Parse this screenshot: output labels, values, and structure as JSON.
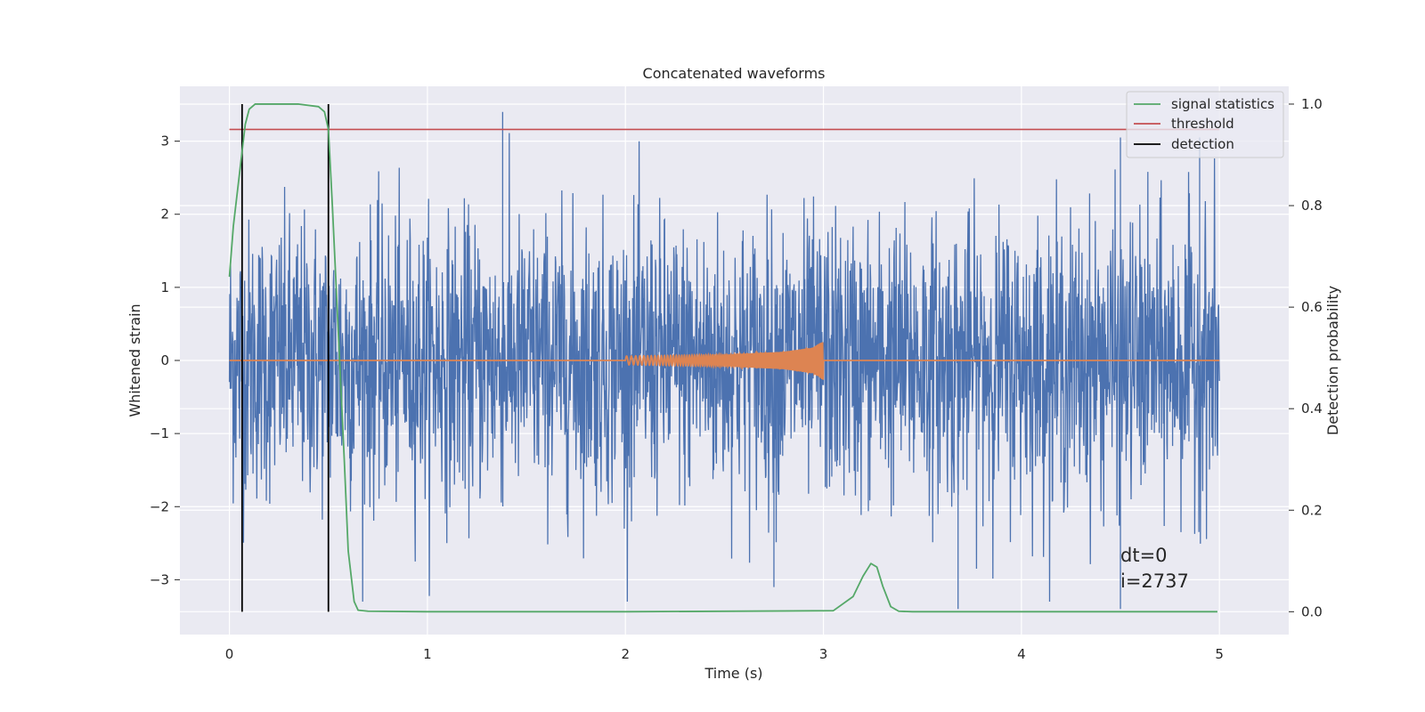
{
  "chart_data": {
    "type": "line",
    "title": "Concatenated waveforms",
    "xlabel": "Time (s)",
    "ylabel": "Whitened strain",
    "ylabel_right": "Detection probability",
    "xlim": [
      -0.25,
      5.35
    ],
    "ylim": [
      -3.75,
      3.75
    ],
    "ylim_right": [
      -0.045,
      1.035
    ],
    "x_ticks": [
      0,
      1,
      2,
      3,
      4,
      5
    ],
    "y_ticks": [
      -3,
      -2,
      -1,
      0,
      1,
      2,
      3
    ],
    "y_ticks_right": [
      "0.0",
      "0.2",
      "0.4",
      "0.6",
      "0.8",
      "1.0"
    ],
    "y_ticks_right_values": [
      0.0,
      0.2,
      0.4,
      0.6,
      0.8,
      1.0
    ],
    "x_tick_labels": [
      "0",
      "1",
      "2",
      "3",
      "4",
      "5"
    ],
    "y_tick_labels": [
      "−3",
      "−2",
      "−1",
      "0",
      "1",
      "2",
      "3"
    ],
    "grid": true,
    "legend_position": "upper right",
    "colors": {
      "strain": "#4c72b0",
      "waveform": "#dd8452",
      "statistics": "#55a868",
      "threshold": "#c44e52",
      "detection": "#000000",
      "background": "#eaeaf2",
      "grid": "#ffffff"
    },
    "series": [
      {
        "name": "whitened strain",
        "axis": "left",
        "style": "noise",
        "x_range": [
          0,
          5
        ],
        "amplitude_typical": 2.4,
        "peak_max": 3.4,
        "peak_min": -3.45,
        "noted_spikes": [
          {
            "x": 1.38,
            "y": 3.4
          },
          {
            "x": 2.75,
            "y": -3.1
          },
          {
            "x": 3.68,
            "y": -3.4
          },
          {
            "x": 4.5,
            "y": 3.05
          },
          {
            "x": 4.5,
            "y": -3.4
          },
          {
            "x": 4.9,
            "y": 3.05
          }
        ]
      },
      {
        "name": "injected waveform",
        "axis": "left",
        "x": [
          0,
          2,
          2,
          2.5,
          2.8,
          2.95,
          3.0,
          3.0,
          5
        ],
        "amplitude": [
          0,
          0,
          0.06,
          0.08,
          0.12,
          0.18,
          0.27,
          0,
          0
        ]
      },
      {
        "name": "signal statistics",
        "axis": "right",
        "x": [
          0,
          0.02,
          0.05,
          0.08,
          0.1,
          0.13,
          0.2,
          0.35,
          0.45,
          0.48,
          0.5,
          0.52,
          0.55,
          0.58,
          0.6,
          0.63,
          0.65,
          0.7,
          1.0,
          2.0,
          3.05,
          3.15,
          3.2,
          3.24,
          3.27,
          3.3,
          3.34,
          3.38,
          3.45,
          4.0,
          4.99
        ],
        "y": [
          0.66,
          0.76,
          0.86,
          0.96,
          0.99,
          1.0,
          1.0,
          1.0,
          0.995,
          0.985,
          0.95,
          0.8,
          0.55,
          0.3,
          0.12,
          0.02,
          0.003,
          0.001,
          0.0,
          0.0,
          0.002,
          0.03,
          0.07,
          0.095,
          0.088,
          0.05,
          0.01,
          0.001,
          0.0,
          0.0,
          0.0
        ]
      },
      {
        "name": "threshold",
        "axis": "right",
        "x": [
          0,
          5
        ],
        "y": [
          0.95,
          0.95
        ]
      },
      {
        "name": "detection",
        "axis": "right",
        "x_values": [
          0.064,
          0.5
        ],
        "y_range": [
          0.0,
          1.0
        ]
      }
    ],
    "legend": [
      "signal statistics",
      "threshold",
      "detection"
    ],
    "annotations": {
      "line1": "dt=0",
      "line2": "i=2737",
      "x": 4.5,
      "y_line1": -2.65,
      "y_line2": -3.05
    }
  }
}
